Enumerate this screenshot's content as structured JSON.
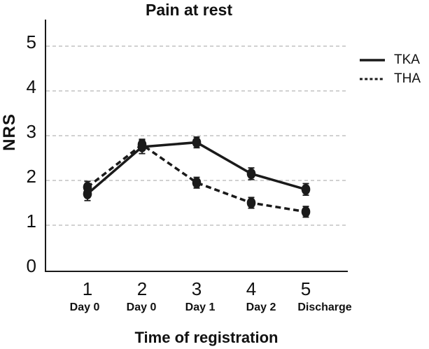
{
  "figure": {
    "background": "#ffffff",
    "text_color": "#111111",
    "axis_color": "#1a1a1a",
    "gridline_color": "#c2c2c2"
  },
  "chart_data": {
    "type": "line",
    "title": "Pain at rest",
    "xlabel": "Time of registration",
    "ylabel": "NRS",
    "x_tick_labels": [
      "1",
      "2",
      "3",
      "4",
      "5"
    ],
    "x_sub_labels": [
      "Day 0",
      "Day 0",
      "Day 1",
      "Day 2",
      "Discharge"
    ],
    "y_ticks": [
      0,
      1,
      2,
      3,
      4,
      5
    ],
    "ylim": [
      0,
      5.6
    ],
    "grid": "horizontal-dashed",
    "legend_position": "right-outside",
    "error_bars": true,
    "series": [
      {
        "name": "TKA",
        "style": "solid",
        "color": "#1a1a1a",
        "values": [
          1.7,
          2.75,
          2.85,
          2.15,
          1.8
        ],
        "error": [
          0.15,
          0.15,
          0.12,
          0.13,
          0.13
        ]
      },
      {
        "name": "THA",
        "style": "dashed",
        "color": "#1a1a1a",
        "values": [
          1.85,
          2.8,
          1.95,
          1.5,
          1.3
        ],
        "error": [
          0.13,
          0.12,
          0.12,
          0.12,
          0.12
        ]
      }
    ]
  }
}
